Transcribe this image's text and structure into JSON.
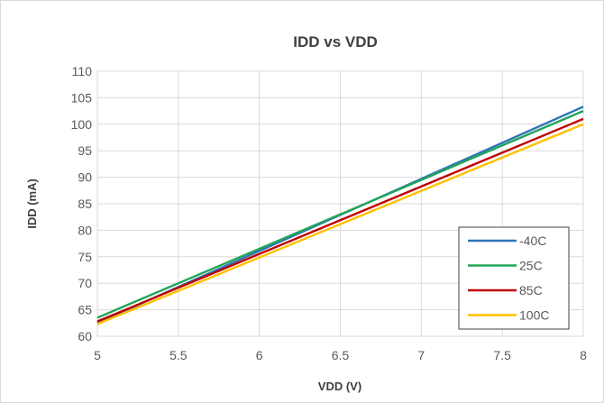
{
  "chart_data": {
    "type": "line",
    "title": "IDD vs VDD",
    "xlabel": "VDD (V)",
    "ylabel": "IDD (mA)",
    "xlim": [
      5,
      8
    ],
    "ylim": [
      60,
      110
    ],
    "xticks": [
      5,
      5.5,
      6,
      6.5,
      7,
      7.5,
      8
    ],
    "yticks": [
      60,
      65,
      70,
      75,
      80,
      85,
      90,
      95,
      100,
      105,
      110
    ],
    "grid": true,
    "legend_position": "bottom-right",
    "series": [
      {
        "name": "-40C",
        "color": "#2e75b6",
        "x": [
          5,
          8
        ],
        "y": [
          62.5,
          103.3
        ]
      },
      {
        "name": "25C",
        "color": "#21a559",
        "x": [
          5,
          8
        ],
        "y": [
          63.5,
          102.5
        ]
      },
      {
        "name": "85C",
        "color": "#c00000",
        "x": [
          5,
          8
        ],
        "y": [
          62.8,
          101.0
        ]
      },
      {
        "name": "100C",
        "color": "#ffc000",
        "x": [
          5,
          8
        ],
        "y": [
          62.3,
          100.0
        ]
      }
    ]
  }
}
